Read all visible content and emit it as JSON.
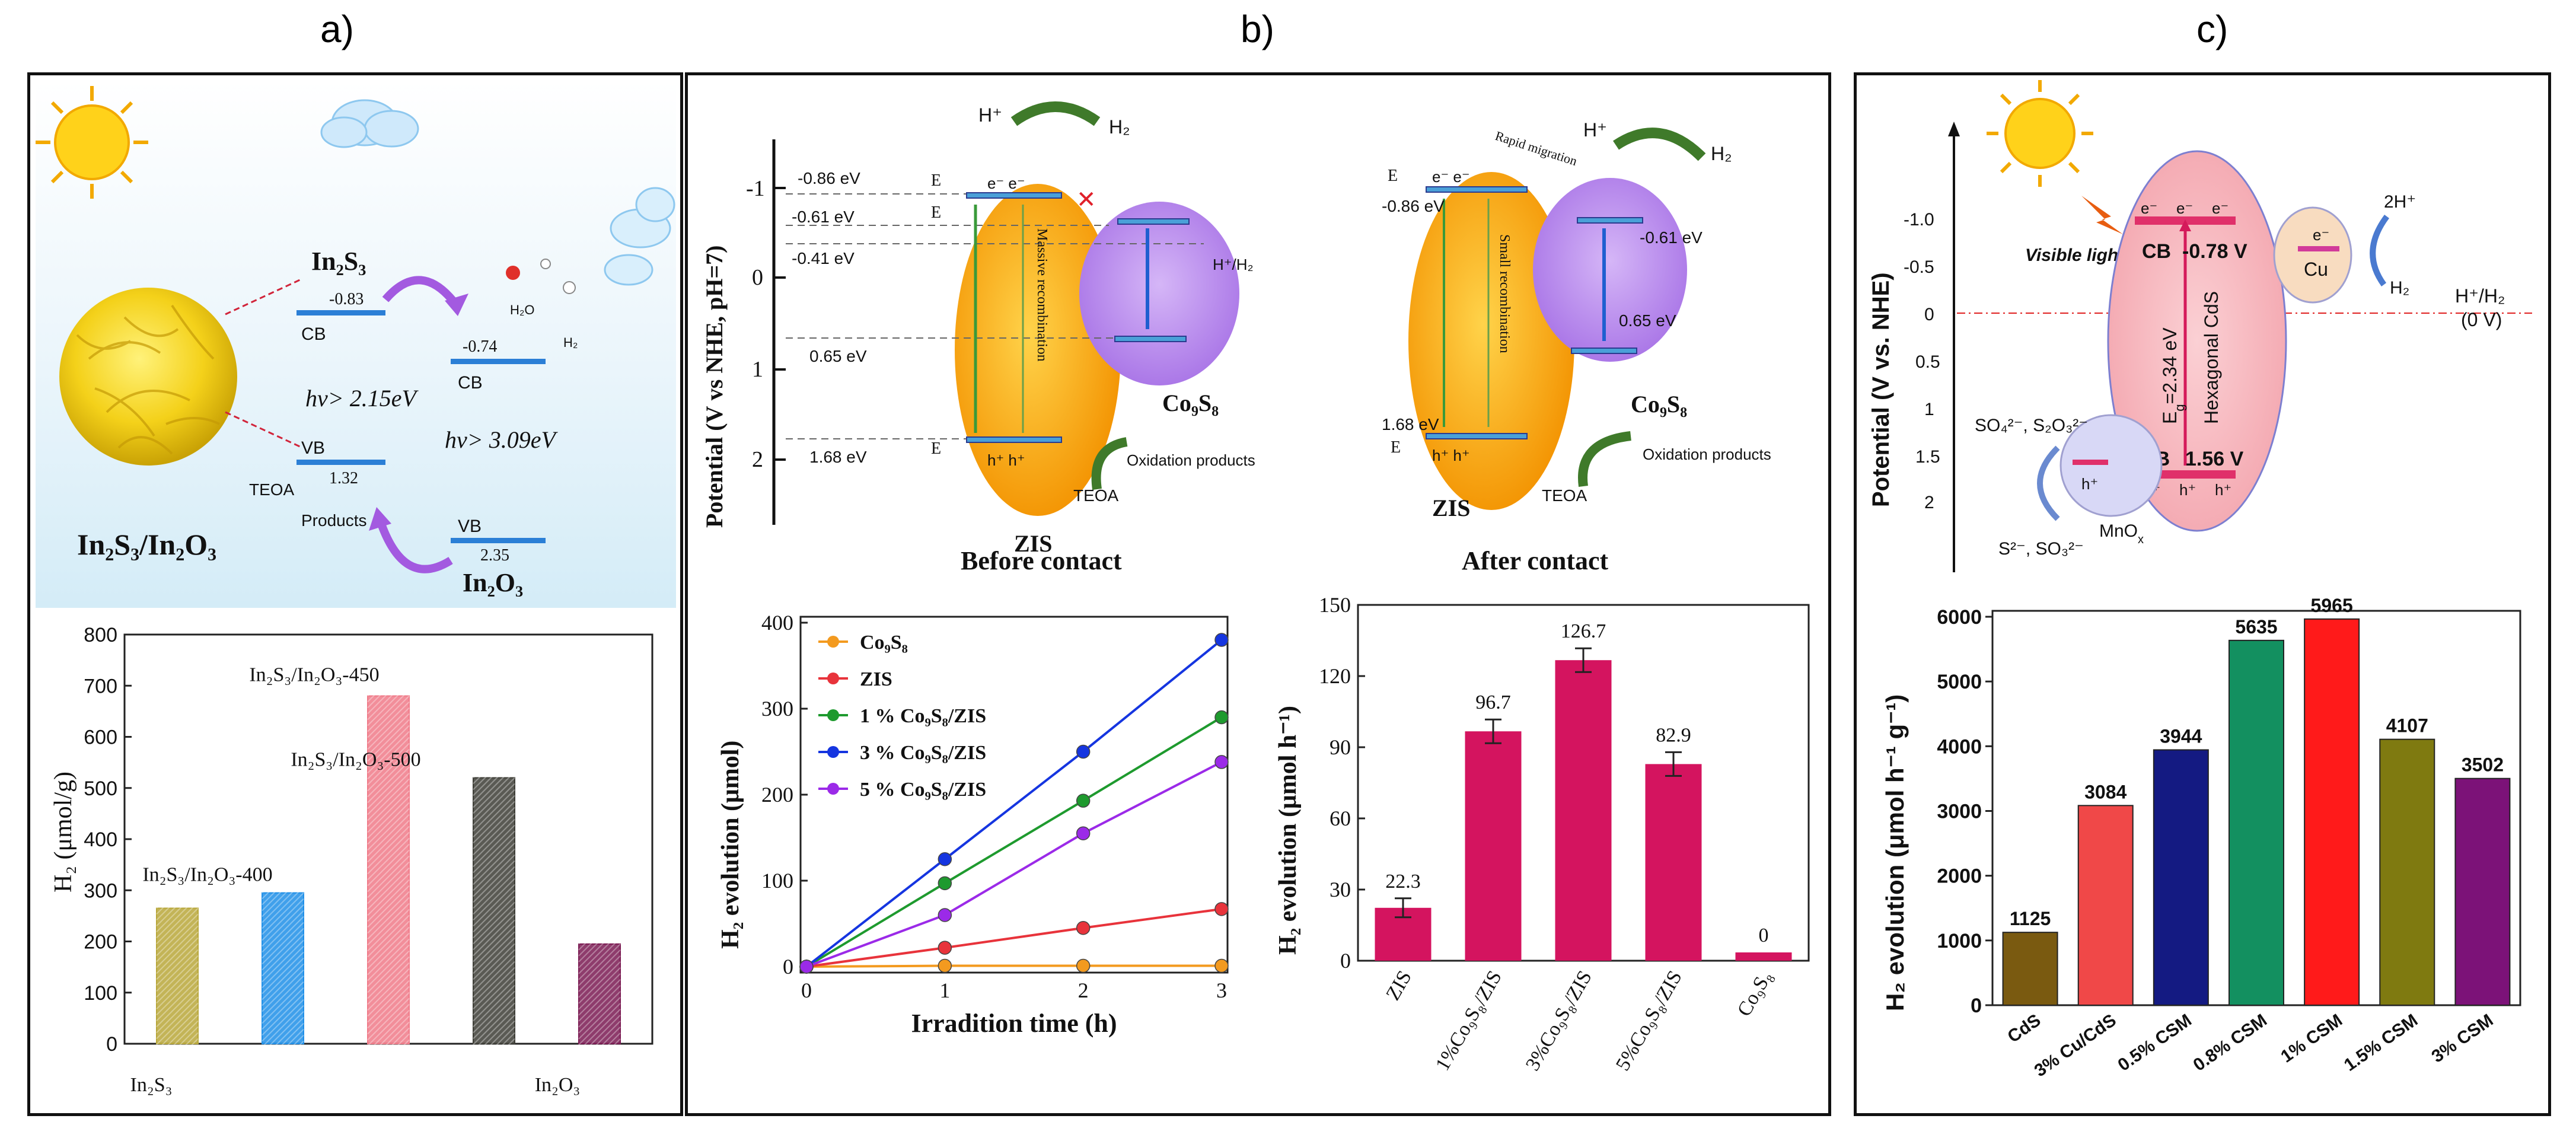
{
  "panel_labels": [
    "a)",
    "b)",
    "c)"
  ],
  "panel_a": {
    "scheme": {
      "in2s3": "In₂S₃",
      "in2o3": "In₂O₃",
      "composite": "In₂S₃/In₂O₃",
      "cb": "CB",
      "vb": "VB",
      "in2s3_cb": "-0.83",
      "in2s3_vb": "1.32",
      "in2o3_cb": "-0.74",
      "in2o3_vb": "2.35",
      "gap1": "hν> 2.15eV",
      "gap2": "hν> 3.09eV",
      "teoa": "TEOA",
      "products": "Products",
      "h2o": "H₂O",
      "h2": "H₂"
    }
  },
  "panel_b": {
    "scheme": {
      "yaxis": "Potential (V vs NHE, pH=7)",
      "ticks": [
        "-1",
        "0",
        "1",
        "2"
      ],
      "before": "Before contact",
      "after": "After contact",
      "zis": "ZIS",
      "co9s8": "Co₉S₈",
      "e_086": "-0.86 eV",
      "e_061": "-0.61 eV",
      "e_041": "-0.41 eV",
      "e_065": "0.65 eV",
      "e_168": "1.68 eV",
      "after_086": "-0.86 eV",
      "after_061": "-0.61 eV",
      "after_065": "0.65 eV",
      "after_168": "1.68 eV",
      "massive": "Massive recombination",
      "small": "Small recombination",
      "rapid": "Rapid migration",
      "oxidation": "Oxidation products",
      "teoa": "TEOA",
      "h_plus": "H⁺",
      "h2": "H₂",
      "h_h2": "H⁺/H₂",
      "ec": "E",
      "ev": "E",
      "ef": "E",
      "electrons": "e⁻ e⁻",
      "holes": "h⁺ h⁺"
    }
  },
  "panel_c": {
    "scheme": {
      "yaxis": "Potential (V vs. NHE)",
      "ticks": [
        "-1.0",
        "-0.5",
        "0",
        "0.5",
        "1",
        "1.5",
        "2"
      ],
      "visible": "Visible light",
      "cb": "CB",
      "vb": "VB",
      "cb_val": "-0.78 V",
      "vb_val": "1.56 V",
      "eg": "E",
      "eg_val": "=2.34 eV",
      "hexcds": "Hexagonal CdS",
      "cu": "Cu",
      "mnox": "MnO",
      "two_h": "2H⁺",
      "h2": "H₂",
      "h_h2": "H⁺/H₂",
      "zero_v": "(0 V)",
      "so4": "SO₄²⁻, S₂O₃²⁻",
      "s2": "S²⁻, SO₃²⁻",
      "e": "e⁻",
      "h": "h⁺"
    }
  },
  "chart_data": [
    {
      "id": "a-bar",
      "type": "bar",
      "title": "",
      "ylabel": "H₂ (μmol/g)",
      "xlabel": "",
      "ylim": [
        0,
        800
      ],
      "yticks": [
        0,
        100,
        200,
        300,
        400,
        500,
        600,
        700,
        800
      ],
      "categories": [
        "In₂S₃",
        "In₂S₃/In₂O₃-400",
        "In₂S₃/In₂O₃-450",
        "In₂S₃/In₂O₃-500",
        "In₂O₃"
      ],
      "values": [
        265,
        295,
        680,
        520,
        195
      ],
      "colors": [
        "#b8a73a",
        "#1f8fe8",
        "#f07a88",
        "#3d3d36",
        "#7a1a52"
      ]
    },
    {
      "id": "b-line",
      "type": "line",
      "xlabel": "Irradition time (h)",
      "ylabel": "H₂ evolution (μmol)",
      "xlim": [
        0,
        3
      ],
      "ylim": [
        0,
        400
      ],
      "xticks": [
        0,
        1,
        2,
        3
      ],
      "yticks": [
        0,
        100,
        200,
        300,
        400
      ],
      "x": [
        0,
        1,
        2,
        3
      ],
      "series": [
        {
          "name": "Co₉S₈",
          "values": [
            0,
            1,
            1,
            1
          ],
          "color": "#f39a1f"
        },
        {
          "name": "ZIS",
          "values": [
            0,
            22,
            45,
            67
          ],
          "color": "#e8333b"
        },
        {
          "name": "1 % Co₉S₈/ZIS",
          "values": [
            0,
            97,
            193,
            290
          ],
          "color": "#1e9a2e"
        },
        {
          "name": "3 % Co₉S₈/ZIS",
          "values": [
            0,
            125,
            250,
            380
          ],
          "color": "#1535e0"
        },
        {
          "name": "5 % Co₉S₈/ZIS",
          "values": [
            0,
            60,
            155,
            238
          ],
          "color": "#9b2ae8"
        }
      ]
    },
    {
      "id": "b-bar",
      "type": "bar",
      "xlabel": "",
      "ylabel": "H₂ evolution (μmol h⁻¹)",
      "ylim": [
        0,
        150
      ],
      "yticks": [
        0,
        30,
        60,
        90,
        120,
        150
      ],
      "categories": [
        "ZIS",
        "1%Co₉S₈/ZIS",
        "3%Co₉S₈/ZIS",
        "5%Co₉S₈/ZIS",
        "Co₉S₈"
      ],
      "values": [
        22.3,
        96.7,
        126.7,
        82.9,
        0
      ],
      "labels": [
        "22.3",
        "96.7",
        "126.7",
        "82.9",
        "0"
      ],
      "errors": [
        4,
        5,
        5,
        5,
        0
      ],
      "color": "#d4145f"
    },
    {
      "id": "c-bar",
      "type": "bar",
      "xlabel": "",
      "ylabel": "H₂ evolution (μmol h⁻¹ g⁻¹)",
      "ylim": [
        0,
        6000
      ],
      "yticks": [
        0,
        1000,
        2000,
        3000,
        4000,
        5000,
        6000
      ],
      "categories": [
        "CdS",
        "3% Cu/CdS",
        "0.5% CSM",
        "0.8% CSM",
        "1% CSM",
        "1.5% CSM",
        "3% CSM"
      ],
      "values": [
        1125,
        3084,
        3944,
        5635,
        5965,
        4107,
        3502
      ],
      "labels": [
        "1125",
        "3084",
        "3944",
        "5635",
        "5965",
        "4107",
        "3502"
      ],
      "colors": [
        "#7a5a10",
        "#f04848",
        "#141a82",
        "#139060",
        "#ff1a1a",
        "#7f7a10",
        "#7c1278"
      ]
    }
  ]
}
